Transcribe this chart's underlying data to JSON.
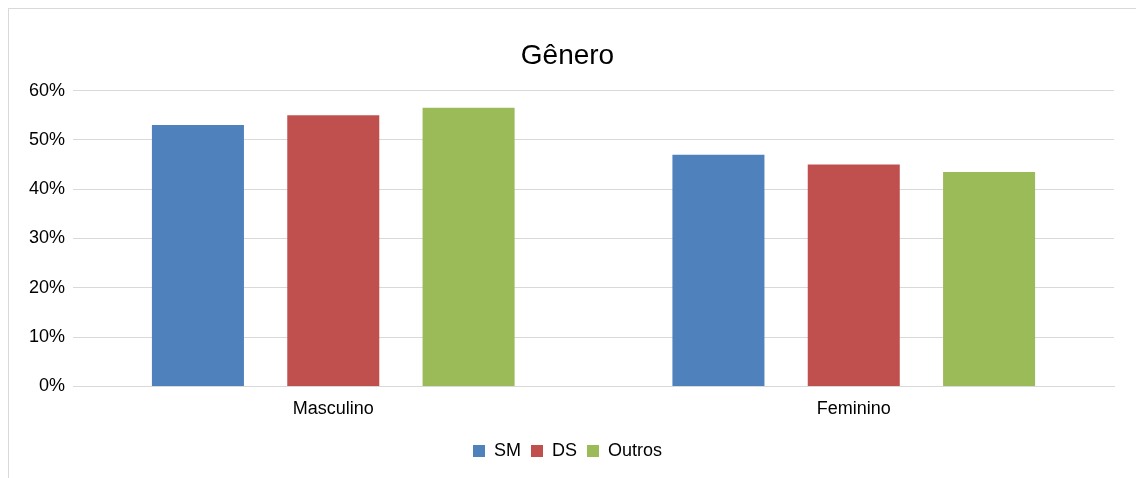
{
  "chart_data": {
    "type": "bar",
    "title": "Gênero",
    "categories": [
      "Masculino",
      "Feminino"
    ],
    "series": [
      {
        "name": "SM",
        "color": "#4f81bd",
        "values": [
          53,
          47
        ]
      },
      {
        "name": "DS",
        "color": "#c0504d",
        "values": [
          55,
          45
        ]
      },
      {
        "name": "Outros",
        "color": "#9bbb59",
        "values": [
          56.5,
          43.5
        ]
      }
    ],
    "ylim": [
      0,
      60
    ],
    "yticks": [
      {
        "value": 0,
        "label": "0%"
      },
      {
        "value": 10,
        "label": "10%"
      },
      {
        "value": 20,
        "label": "20%"
      },
      {
        "value": 30,
        "label": "30%"
      },
      {
        "value": 40,
        "label": "40%"
      },
      {
        "value": 50,
        "label": "50%"
      },
      {
        "value": 60,
        "label": "60%"
      }
    ],
    "grid": "y",
    "legend": "bottom"
  }
}
